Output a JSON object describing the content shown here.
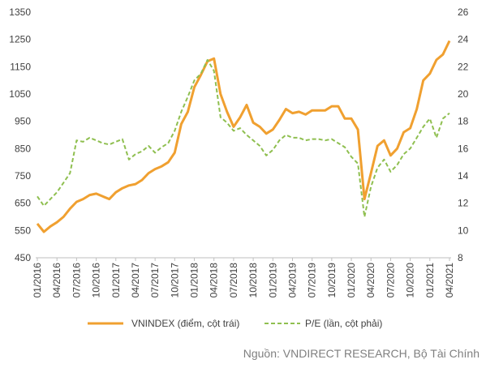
{
  "chart_data": {
    "type": "line",
    "x": [
      "2016-01",
      "2016-02",
      "2016-03",
      "2016-04",
      "2016-05",
      "2016-06",
      "2016-07",
      "2016-08",
      "2016-09",
      "2016-10",
      "2016-11",
      "2016-12",
      "2017-01",
      "2017-02",
      "2017-03",
      "2017-04",
      "2017-05",
      "2017-06",
      "2017-07",
      "2017-08",
      "2017-09",
      "2017-10",
      "2017-11",
      "2017-12",
      "2018-01",
      "2018-02",
      "2018-03",
      "2018-04",
      "2018-05",
      "2018-06",
      "2018-07",
      "2018-08",
      "2018-09",
      "2018-10",
      "2018-11",
      "2018-12",
      "2019-01",
      "2019-02",
      "2019-03",
      "2019-04",
      "2019-05",
      "2019-06",
      "2019-07",
      "2019-08",
      "2019-09",
      "2019-10",
      "2019-11",
      "2019-12",
      "2020-01",
      "2020-02",
      "2020-03",
      "2020-04",
      "2020-05",
      "2020-06",
      "2020-07",
      "2020-08",
      "2020-09",
      "2020-10",
      "2020-11",
      "2020-12",
      "2021-01",
      "2021-02",
      "2021-03",
      "2021-04"
    ],
    "x_tick_labels": [
      "01/2016",
      "04/2016",
      "07/2016",
      "10/2016",
      "01/2017",
      "04/2017",
      "07/2017",
      "10/2017",
      "01/2018",
      "04/2018",
      "07/2018",
      "10/2018",
      "01/2019",
      "04/2019",
      "07/2019",
      "10/2019",
      "01/2020",
      "04/2020",
      "07/2020",
      "10/2020",
      "01/2021",
      "04/2021"
    ],
    "series": [
      {
        "name": "VNINDEX (điểm, cột trái)",
        "axis": "left",
        "color": "#f0a030",
        "style": "solid",
        "values": [
          575,
          545,
          565,
          580,
          600,
          630,
          655,
          665,
          680,
          685,
          675,
          665,
          690,
          705,
          715,
          720,
          735,
          760,
          775,
          785,
          800,
          835,
          940,
          985,
          1075,
          1120,
          1170,
          1180,
          1050,
          985,
          930,
          965,
          1010,
          945,
          930,
          905,
          920,
          955,
          995,
          980,
          985,
          975,
          990,
          990,
          990,
          1005,
          1005,
          960,
          960,
          920,
          665,
          760,
          860,
          880,
          825,
          850,
          910,
          925,
          995,
          1100,
          1125,
          1175,
          1195,
          1245
        ]
      },
      {
        "name": "P/E (lần, cột phải)",
        "axis": "right",
        "color": "#8fbf50",
        "style": "dashed",
        "values": [
          12.5,
          11.8,
          12.3,
          12.8,
          13.5,
          14.2,
          16.6,
          16.5,
          16.8,
          16.6,
          16.4,
          16.3,
          16.5,
          16.7,
          15.2,
          15.6,
          15.8,
          16.2,
          15.7,
          16.1,
          16.4,
          17.3,
          18.7,
          19.8,
          21.0,
          21.5,
          22.5,
          21.7,
          18.3,
          17.9,
          17.3,
          17.5,
          17.0,
          16.6,
          16.2,
          15.5,
          15.9,
          16.6,
          17.0,
          16.8,
          16.8,
          16.6,
          16.7,
          16.7,
          16.6,
          16.7,
          16.4,
          16.1,
          15.4,
          14.9,
          11.0,
          13.2,
          14.6,
          15.2,
          14.3,
          14.8,
          15.6,
          16.0,
          16.8,
          17.6,
          18.2,
          16.8,
          18.2,
          18.6
        ]
      }
    ],
    "y_left": {
      "min": 450,
      "max": 1350,
      "ticks": [
        450,
        550,
        650,
        750,
        850,
        950,
        1050,
        1150,
        1250,
        1350
      ]
    },
    "y_right": {
      "min": 8,
      "max": 26,
      "ticks": [
        8,
        10,
        12,
        14,
        16,
        18,
        20,
        22,
        24,
        26
      ]
    },
    "legend": "bottom",
    "grid": false
  },
  "source_text": "Nguồn: VNDIRECT RESEARCH, Bộ Tài Chính"
}
